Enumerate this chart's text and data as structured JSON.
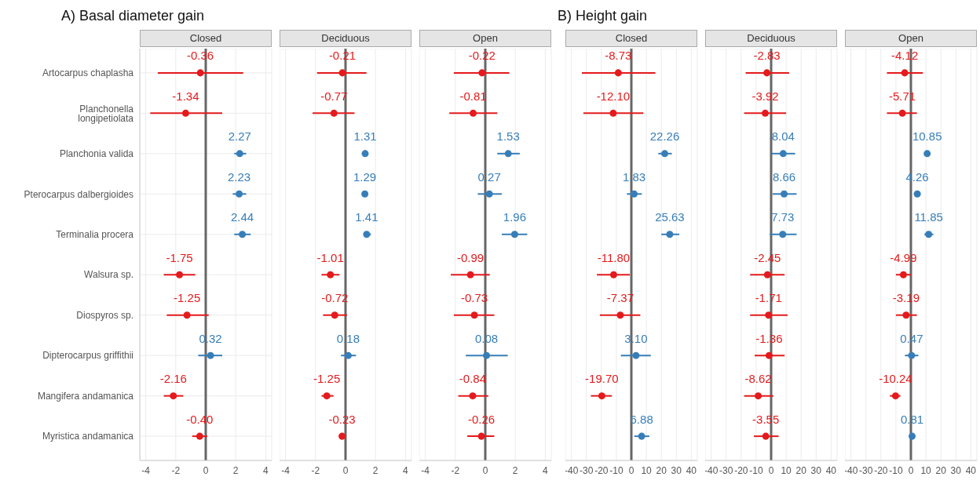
{
  "chart_data": [
    {
      "type": "scatter",
      "orientation": "horizontal",
      "title": "A) Basal diameter gain",
      "subtitle": "Closed",
      "marker": "circle",
      "grid": true,
      "categories": [
        "Artocarpus chaplasha",
        "Planchonella longipetiolata",
        "Planchonia valida",
        "Pterocarpus dalbergioides",
        "Terminalia procera",
        "Walsura sp.",
        "Diospyros sp.",
        "Dipterocarpus griffithii",
        "Mangifera andamanica",
        "Myristica andamanica"
      ],
      "values": [
        -0.36,
        -1.34,
        2.27,
        2.23,
        2.44,
        -1.75,
        -1.25,
        0.32,
        -2.16,
        -0.4
      ],
      "errors": [
        [
          -3.2,
          2.5
        ],
        [
          -3.7,
          1.1
        ],
        [
          1.9,
          2.7
        ],
        [
          1.8,
          2.7
        ],
        [
          1.9,
          3.0
        ],
        [
          -2.8,
          -0.7
        ],
        [
          -2.6,
          0.2
        ],
        [
          -0.5,
          1.1
        ],
        [
          -2.8,
          -1.5
        ],
        [
          -0.9,
          0.1
        ]
      ],
      "colors": [
        "#e41a1c",
        "#e41a1c",
        "#377eb8",
        "#377eb8",
        "#377eb8",
        "#e41a1c",
        "#e41a1c",
        "#377eb8",
        "#e41a1c",
        "#e41a1c"
      ],
      "value_labels": [
        "-0.36",
        "-1.34",
        "2.27",
        "2.23",
        "2.44",
        "-1.75",
        "-1.25",
        "0.32",
        "-2.16",
        "-0.40"
      ],
      "xlim": [
        -4.4,
        4.4
      ],
      "xticks": [
        -4,
        -2,
        0,
        2,
        4
      ],
      "ref_lines": [
        {
          "axis": "x",
          "value": 0,
          "color": "#666666"
        }
      ]
    },
    {
      "type": "scatter",
      "orientation": "horizontal",
      "subtitle": "Deciduous",
      "marker": "circle",
      "grid": true,
      "tick_labels": "x",
      "categories": [
        null,
        null,
        null,
        null,
        null,
        null,
        null,
        null,
        null,
        null
      ],
      "values": [
        -0.21,
        -0.77,
        1.31,
        1.29,
        1.41,
        -1.01,
        -0.72,
        0.18,
        -1.25,
        -0.23
      ],
      "errors": [
        [
          -1.9,
          1.4
        ],
        [
          -2.2,
          0.6
        ],
        null,
        null,
        [
          1.2,
          1.7
        ],
        [
          -1.6,
          -0.4
        ],
        [
          -1.5,
          0.1
        ],
        [
          -0.3,
          0.7
        ],
        [
          -1.6,
          -0.8
        ],
        null
      ],
      "colors": [
        "#e41a1c",
        "#e41a1c",
        "#377eb8",
        "#377eb8",
        "#377eb8",
        "#e41a1c",
        "#e41a1c",
        "#377eb8",
        "#e41a1c",
        "#e41a1c"
      ],
      "value_labels": [
        "-0.21",
        "-0.77",
        "1.31",
        "1.29",
        "1.41",
        "-1.01",
        "-0.72",
        "0.18",
        "-1.25",
        "-0.23"
      ],
      "xlim": [
        -4.4,
        4.4
      ],
      "xticks": [
        -4,
        -2,
        0,
        2,
        4
      ],
      "ref_lines": [
        {
          "axis": "x",
          "value": 0,
          "color": "#666666"
        }
      ]
    },
    {
      "type": "scatter",
      "orientation": "horizontal",
      "subtitle": "Open",
      "marker": "circle",
      "grid": true,
      "tick_labels": "x",
      "categories": [
        null,
        null,
        null,
        null,
        null,
        null,
        null,
        null,
        null,
        null
      ],
      "values": [
        -0.22,
        -0.81,
        1.53,
        0.27,
        1.96,
        -0.99,
        -0.73,
        0.08,
        -0.84,
        -0.26
      ],
      "errors": [
        [
          -2.1,
          1.6
        ],
        [
          -2.4,
          0.8
        ],
        [
          0.8,
          2.3
        ],
        [
          -0.5,
          1.1
        ],
        [
          1.1,
          2.8
        ],
        [
          -2.3,
          0.3
        ],
        [
          -2.1,
          0.6
        ],
        [
          -1.3,
          1.5
        ],
        [
          -1.8,
          0.2
        ],
        [
          -1.2,
          0.6
        ]
      ],
      "colors": [
        "#e41a1c",
        "#e41a1c",
        "#377eb8",
        "#377eb8",
        "#377eb8",
        "#e41a1c",
        "#e41a1c",
        "#377eb8",
        "#e41a1c",
        "#e41a1c"
      ],
      "value_labels": [
        "-0.22",
        "-0.81",
        "1.53",
        "0.27",
        "1.96",
        "-0.99",
        "-0.73",
        "0.08",
        "-0.84",
        "-0.26"
      ],
      "xlim": [
        -4.4,
        4.4
      ],
      "xticks": [
        -4,
        -2,
        0,
        2,
        4
      ],
      "ref_lines": [
        {
          "axis": "x",
          "value": 0,
          "color": "#666666"
        }
      ]
    },
    {
      "type": "scatter",
      "orientation": "horizontal",
      "title": "B) Height gain",
      "subtitle": "Closed",
      "marker": "circle",
      "grid": true,
      "tick_labels": "x",
      "categories": [
        null,
        null,
        null,
        null,
        null,
        null,
        null,
        null,
        null,
        null
      ],
      "values": [
        -8.73,
        -12.1,
        22.26,
        1.83,
        25.63,
        -11.8,
        -7.37,
        3.1,
        -19.7,
        6.88
      ],
      "errors": [
        [
          -33,
          16
        ],
        [
          -32,
          8
        ],
        [
          18,
          27
        ],
        [
          -3,
          7
        ],
        [
          20,
          32
        ],
        [
          -23,
          -1
        ],
        [
          -21,
          6
        ],
        [
          -7,
          13
        ],
        [
          -27,
          -13
        ],
        [
          2,
          12
        ]
      ],
      "colors": [
        "#e41a1c",
        "#e41a1c",
        "#377eb8",
        "#377eb8",
        "#377eb8",
        "#e41a1c",
        "#e41a1c",
        "#377eb8",
        "#e41a1c",
        "#377eb8"
      ],
      "value_labels": [
        "-8.73",
        "-12.10",
        "22.26",
        "1.83",
        "25.63",
        "-11.80",
        "-7.37",
        "3.10",
        "-19.70",
        "6.88"
      ],
      "xlim": [
        -44,
        44
      ],
      "xticks": [
        -40,
        -30,
        -20,
        -10,
        0,
        10,
        20,
        30,
        40
      ],
      "ref_lines": [
        {
          "axis": "x",
          "value": 0,
          "color": "#666666"
        }
      ]
    },
    {
      "type": "scatter",
      "orientation": "horizontal",
      "subtitle": "Deciduous",
      "marker": "circle",
      "grid": true,
      "tick_labels": "x",
      "categories": [
        null,
        null,
        null,
        null,
        null,
        null,
        null,
        null,
        null,
        null
      ],
      "values": [
        -2.83,
        -3.92,
        8.04,
        8.66,
        7.73,
        -2.45,
        -1.71,
        -1.36,
        -8.62,
        -3.55
      ],
      "errors": [
        [
          -17,
          12
        ],
        [
          -18,
          10
        ],
        [
          0.5,
          16
        ],
        [
          1,
          17
        ],
        [
          -1,
          17
        ],
        [
          -14,
          9
        ],
        [
          -14,
          11
        ],
        [
          -11,
          9
        ],
        [
          -18,
          1.5
        ],
        [
          -11.5,
          5
        ]
      ],
      "colors": [
        "#e41a1c",
        "#e41a1c",
        "#377eb8",
        "#377eb8",
        "#377eb8",
        "#e41a1c",
        "#e41a1c",
        "#e41a1c",
        "#e41a1c",
        "#e41a1c"
      ],
      "value_labels": [
        "-2.83",
        "-3.92",
        "8.04",
        "8.66",
        "7.73",
        "-2.45",
        "-1.71",
        "-1.36",
        "-8.62",
        "-3.55"
      ],
      "xlim": [
        -44,
        44
      ],
      "xticks": [
        -40,
        -30,
        -20,
        -10,
        0,
        10,
        20,
        30,
        40
      ],
      "ref_lines": [
        {
          "axis": "x",
          "value": 0,
          "color": "#666666"
        }
      ]
    },
    {
      "type": "scatter",
      "orientation": "horizontal",
      "subtitle": "Open",
      "marker": "circle",
      "grid": true,
      "tick_labels": "x",
      "categories": [
        null,
        null,
        null,
        null,
        null,
        null,
        null,
        null,
        null,
        null
      ],
      "values": [
        -4.12,
        -5.71,
        10.85,
        4.26,
        11.85,
        -4.99,
        -3.19,
        0.47,
        -10.24,
        0.81
      ],
      "errors": [
        [
          -16,
          8
        ],
        [
          -16,
          4
        ],
        null,
        null,
        [
          9,
          15
        ],
        [
          -10,
          0
        ],
        [
          -10,
          4
        ],
        [
          -4,
          5
        ],
        [
          -14,
          -7
        ],
        null
      ],
      "colors": [
        "#e41a1c",
        "#e41a1c",
        "#377eb8",
        "#377eb8",
        "#377eb8",
        "#e41a1c",
        "#e41a1c",
        "#377eb8",
        "#e41a1c",
        "#377eb8"
      ],
      "value_labels": [
        "-4.12",
        "-5.71",
        "10.85",
        "4.26",
        "11.85",
        "-4.99",
        "-3.19",
        "0.47",
        "-10.24",
        "0.81"
      ],
      "xlim": [
        -44,
        44
      ],
      "xticks": [
        -40,
        -30,
        -20,
        -10,
        0,
        10,
        20,
        30,
        40
      ],
      "ref_lines": [
        {
          "axis": "x",
          "value": 0,
          "color": "#666666"
        }
      ]
    }
  ]
}
